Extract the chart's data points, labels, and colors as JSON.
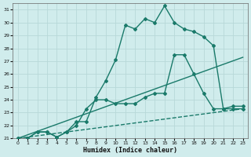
{
  "xlabel": "Humidex (Indice chaleur)",
  "bg_color": "#d0ecec",
  "grid_color": "#b8d8d8",
  "line_color": "#1a7a6a",
  "xlim": [
    -0.5,
    23.5
  ],
  "ylim": [
    21,
    31.5
  ],
  "yticks": [
    21,
    22,
    23,
    24,
    25,
    26,
    27,
    28,
    29,
    30,
    31
  ],
  "xticks": [
    0,
    1,
    2,
    3,
    4,
    5,
    6,
    7,
    8,
    9,
    10,
    11,
    12,
    13,
    14,
    15,
    16,
    17,
    18,
    19,
    20,
    21,
    22,
    23
  ],
  "line1_x": [
    0,
    1,
    2,
    3,
    4,
    5,
    6,
    7,
    8,
    9,
    10,
    11,
    12,
    13,
    14,
    15,
    16,
    17,
    18,
    19,
    20,
    21,
    22,
    23
  ],
  "line1_y": [
    21,
    21,
    21.5,
    21.5,
    21.1,
    21.5,
    22.3,
    22.3,
    24.2,
    25.5,
    27.1,
    29.8,
    29.5,
    30.3,
    30.0,
    31.3,
    30.0,
    29.5,
    29.3,
    28.9,
    28.2,
    23.3,
    23.3,
    23.3
  ],
  "line2_x": [
    0,
    1,
    2,
    3,
    4,
    5,
    6,
    7,
    8,
    9,
    10,
    11,
    12,
    13,
    14,
    15,
    16,
    17,
    18,
    19,
    20,
    21,
    22,
    23
  ],
  "line2_y": [
    21,
    21,
    21.5,
    21.5,
    21.1,
    21.5,
    22.0,
    23.3,
    24.0,
    24.0,
    23.7,
    23.7,
    23.7,
    24.2,
    24.5,
    24.5,
    27.5,
    27.5,
    26.0,
    24.5,
    23.3,
    23.3,
    23.5,
    23.5
  ],
  "line3_x": [
    0,
    23
  ],
  "line3_y": [
    21,
    27.3
  ],
  "line4_x": [
    0,
    23
  ],
  "line4_y": [
    21,
    23.3
  ]
}
